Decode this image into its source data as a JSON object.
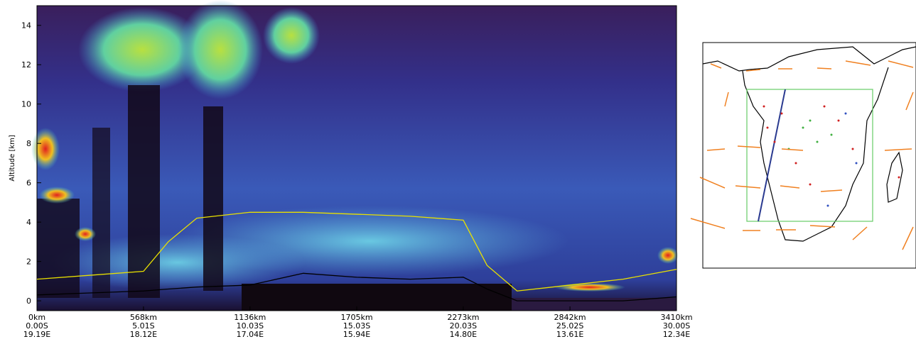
{
  "chart_data": {
    "type": "curtain",
    "ylabel": "Altitude [km]",
    "ylim": [
      -0.5,
      15
    ],
    "yticks": [
      0,
      2,
      4,
      6,
      8,
      10,
      12,
      14
    ],
    "xlim": [
      0,
      3410
    ],
    "xticks": [
      {
        "value": 0,
        "label": "0km"
      },
      {
        "value": 568,
        "label": "568km"
      },
      {
        "value": 1136,
        "label": "1136km"
      },
      {
        "value": 1705,
        "label": "1705km"
      },
      {
        "value": 2273,
        "label": "2273km"
      },
      {
        "value": 2842,
        "label": "2842km"
      },
      {
        "value": 3410,
        "label": "3410km"
      }
    ],
    "lat_labels": [
      "0.00S",
      "5.01S",
      "10.03S",
      "15.03S",
      "20.03S",
      "25.02S",
      "30.00S"
    ],
    "lon_labels": [
      "19.19E",
      "18.12E",
      "17.04E",
      "15.94E",
      "14.80E",
      "13.61E",
      "12.34E"
    ],
    "x": [
      0,
      284,
      568,
      700,
      852,
      1136,
      1420,
      1705,
      1990,
      2273,
      2400,
      2560,
      2842,
      3125,
      3410
    ],
    "series": [
      {
        "color": "#e8e000",
        "values": [
          1.1,
          1.3,
          1.5,
          3.0,
          4.2,
          4.5,
          4.5,
          4.4,
          4.3,
          4.1,
          1.8,
          0.5,
          0.8,
          1.1,
          1.6
        ]
      },
      {
        "color": "#000000",
        "values": [
          0.3,
          0.4,
          0.5,
          0.6,
          0.7,
          0.8,
          1.4,
          1.2,
          1.1,
          1.2,
          0.6,
          0,
          0,
          0,
          0.2
        ]
      }
    ]
  }
}
